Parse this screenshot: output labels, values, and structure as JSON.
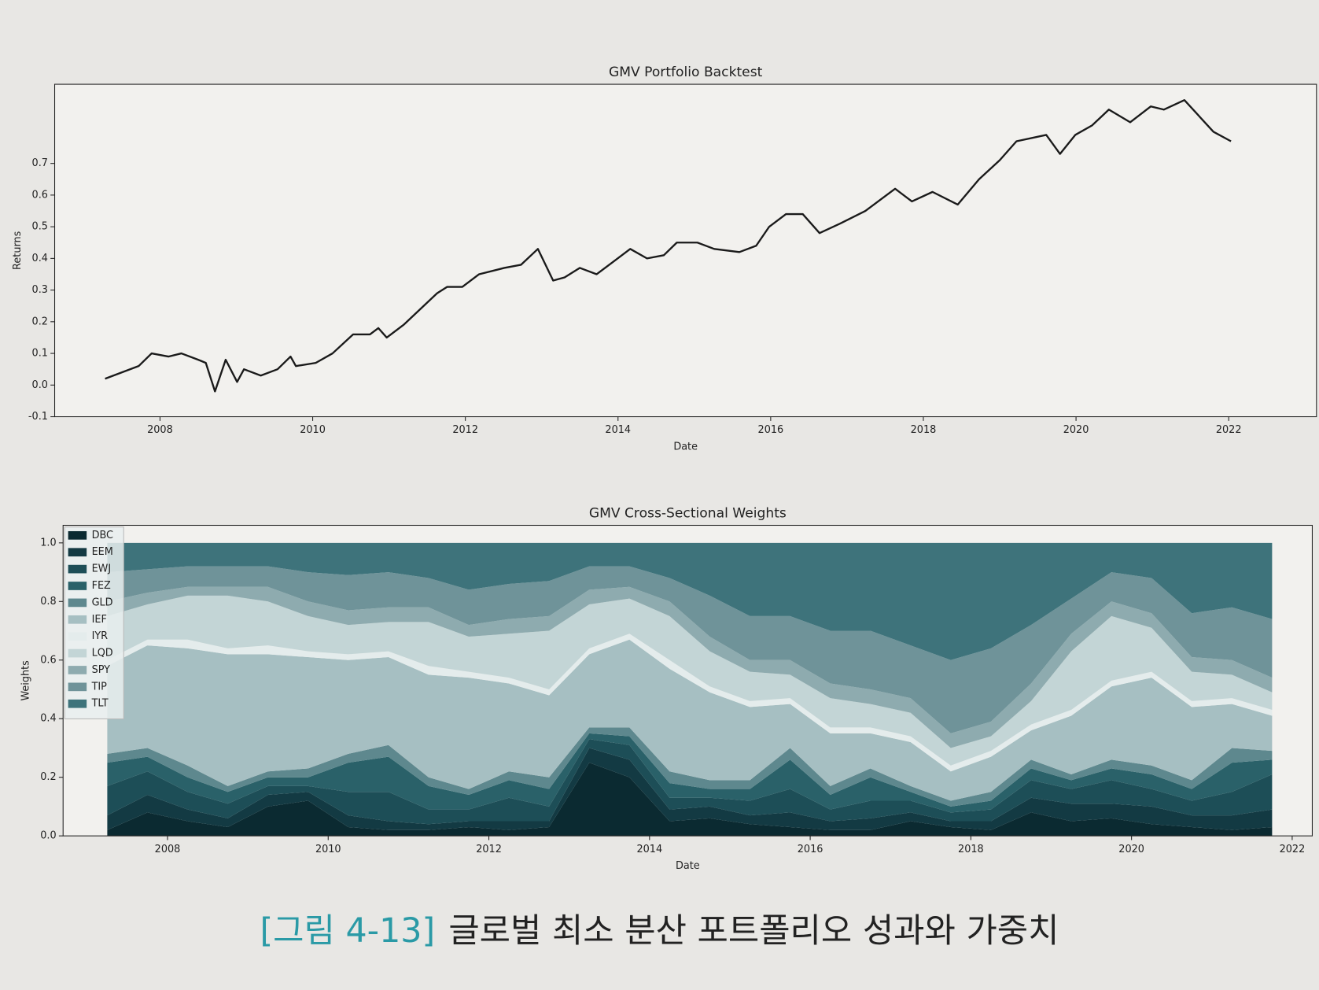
{
  "chart_data": [
    {
      "type": "line",
      "title": "GMV Portfolio Backtest",
      "xlabel": "Date",
      "ylabel": "Returns",
      "x": [
        2007.28,
        2007.72,
        2007.89,
        2008.11,
        2008.28,
        2008.5,
        2008.6,
        2008.72,
        2008.86,
        2009.01,
        2009.1,
        2009.32,
        2009.54,
        2009.71,
        2009.78,
        2010.04,
        2010.26,
        2010.53,
        2010.75,
        2010.86,
        2010.97,
        2011.19,
        2011.41,
        2011.63,
        2011.76,
        2011.96,
        2012.18,
        2012.51,
        2012.73,
        2012.95,
        2013.15,
        2013.3,
        2013.5,
        2013.72,
        2013.94,
        2014.16,
        2014.38,
        2014.6,
        2014.77,
        2015.04,
        2015.26,
        2015.59,
        2015.81,
        2015.98,
        2016.2,
        2016.42,
        2016.64,
        2016.91,
        2017.24,
        2017.63,
        2017.85,
        2018.12,
        2018.45,
        2018.73,
        2019.0,
        2019.22,
        2019.61,
        2019.79,
        2019.99,
        2020.21,
        2020.43,
        2020.71,
        2020.98,
        2021.15,
        2021.42,
        2021.8,
        2022.03
      ],
      "series": [
        {
          "name": "Returns",
          "color": "#1a1a1a",
          "values": [
            0.02,
            0.06,
            0.1,
            0.09,
            0.1,
            0.08,
            0.07,
            -0.02,
            0.08,
            0.01,
            0.05,
            0.03,
            0.05,
            0.09,
            0.06,
            0.07,
            0.1,
            0.16,
            0.16,
            0.18,
            0.15,
            0.19,
            0.24,
            0.29,
            0.31,
            0.31,
            0.35,
            0.37,
            0.38,
            0.43,
            0.33,
            0.34,
            0.37,
            0.35,
            0.39,
            0.43,
            0.4,
            0.41,
            0.45,
            0.45,
            0.43,
            0.42,
            0.44,
            0.5,
            0.54,
            0.54,
            0.48,
            0.51,
            0.55,
            0.62,
            0.58,
            0.61,
            0.57,
            0.65,
            0.71,
            0.77,
            0.79,
            0.73,
            0.79,
            0.82,
            0.87,
            0.83,
            0.88,
            0.87,
            0.9,
            0.8,
            0.77
          ]
        }
      ],
      "xlim": [
        2006.62,
        2023.15
      ],
      "xticks": [
        2008,
        2010,
        2012,
        2014,
        2016,
        2018,
        2020,
        2022
      ],
      "ylim": [
        -0.1,
        0.95
      ],
      "yticks": [
        -0.1,
        {
          "value": 0,
          "label": "0.0"
        },
        0.1,
        0.2,
        0.3,
        0.4,
        0.5,
        0.6,
        0.7
      ]
    },
    {
      "type": "stacked_area",
      "title": "GMV Cross-Sectional Weights",
      "xlabel": "Date",
      "ylabel": "Weights",
      "legend": "upper left",
      "x": [
        2007.25,
        2007.75,
        2008.25,
        2008.75,
        2009.25,
        2009.75,
        2010.25,
        2010.75,
        2011.25,
        2011.75,
        2012.25,
        2012.75,
        2013.25,
        2013.75,
        2014.25,
        2014.75,
        2015.25,
        2015.75,
        2016.25,
        2016.75,
        2017.25,
        2017.75,
        2018.25,
        2018.75,
        2019.25,
        2019.75,
        2020.25,
        2020.75,
        2021.25,
        2021.75
      ],
      "series": [
        {
          "name": "DBC",
          "color": "#0b2a31",
          "values": [
            0.02,
            0.08,
            0.05,
            0.03,
            0.1,
            0.12,
            0.03,
            0.02,
            0.02,
            0.03,
            0.02,
            0.03,
            0.25,
            0.2,
            0.05,
            0.06,
            0.04,
            0.03,
            0.02,
            0.02,
            0.05,
            0.03,
            0.02,
            0.08,
            0.05,
            0.06,
            0.04,
            0.03,
            0.02,
            0.03
          ]
        },
        {
          "name": "EEM",
          "color": "#133a43",
          "values": [
            0.05,
            0.06,
            0.04,
            0.03,
            0.04,
            0.03,
            0.04,
            0.03,
            0.02,
            0.02,
            0.03,
            0.02,
            0.05,
            0.06,
            0.04,
            0.04,
            0.03,
            0.05,
            0.03,
            0.04,
            0.03,
            0.02,
            0.03,
            0.05,
            0.06,
            0.05,
            0.06,
            0.04,
            0.05,
            0.06
          ]
        },
        {
          "name": "EWJ",
          "color": "#1d4e57",
          "values": [
            0.1,
            0.08,
            0.06,
            0.05,
            0.03,
            0.02,
            0.08,
            0.1,
            0.05,
            0.04,
            0.08,
            0.05,
            0.03,
            0.05,
            0.04,
            0.03,
            0.05,
            0.08,
            0.04,
            0.06,
            0.04,
            0.03,
            0.04,
            0.06,
            0.05,
            0.08,
            0.06,
            0.05,
            0.08,
            0.12
          ]
        },
        {
          "name": "FEZ",
          "color": "#2a6169",
          "values": [
            0.08,
            0.05,
            0.05,
            0.04,
            0.03,
            0.03,
            0.1,
            0.12,
            0.08,
            0.05,
            0.06,
            0.06,
            0.02,
            0.03,
            0.05,
            0.03,
            0.04,
            0.1,
            0.05,
            0.08,
            0.03,
            0.02,
            0.03,
            0.04,
            0.03,
            0.04,
            0.05,
            0.04,
            0.1,
            0.05
          ]
        },
        {
          "name": "GLD",
          "color": "#5e888e",
          "values": [
            0.03,
            0.03,
            0.04,
            0.02,
            0.02,
            0.03,
            0.03,
            0.04,
            0.03,
            0.02,
            0.03,
            0.04,
            0.02,
            0.03,
            0.04,
            0.03,
            0.03,
            0.04,
            0.03,
            0.03,
            0.02,
            0.02,
            0.03,
            0.03,
            0.02,
            0.03,
            0.03,
            0.03,
            0.05,
            0.03
          ]
        },
        {
          "name": "IEF",
          "color": "#a6bfc2",
          "values": [
            0.3,
            0.35,
            0.4,
            0.45,
            0.4,
            0.38,
            0.32,
            0.3,
            0.35,
            0.38,
            0.3,
            0.28,
            0.25,
            0.3,
            0.35,
            0.3,
            0.25,
            0.15,
            0.18,
            0.12,
            0.15,
            0.1,
            0.12,
            0.1,
            0.2,
            0.25,
            0.3,
            0.25,
            0.15,
            0.12
          ]
        },
        {
          "name": "IYR",
          "color": "#e4ecec",
          "values": [
            0.02,
            0.02,
            0.03,
            0.02,
            0.03,
            0.02,
            0.02,
            0.02,
            0.03,
            0.02,
            0.02,
            0.02,
            0.02,
            0.02,
            0.03,
            0.02,
            0.02,
            0.02,
            0.02,
            0.02,
            0.02,
            0.02,
            0.02,
            0.02,
            0.02,
            0.02,
            0.02,
            0.02,
            0.02,
            0.02
          ]
        },
        {
          "name": "LQD",
          "color": "#c3d5d6",
          "values": [
            0.15,
            0.12,
            0.15,
            0.18,
            0.15,
            0.12,
            0.1,
            0.1,
            0.15,
            0.12,
            0.15,
            0.2,
            0.15,
            0.12,
            0.15,
            0.12,
            0.1,
            0.08,
            0.1,
            0.08,
            0.08,
            0.06,
            0.05,
            0.08,
            0.2,
            0.22,
            0.15,
            0.1,
            0.08,
            0.06
          ]
        },
        {
          "name": "SPY",
          "color": "#8eabaf",
          "values": [
            0.05,
            0.04,
            0.03,
            0.03,
            0.05,
            0.05,
            0.05,
            0.05,
            0.05,
            0.04,
            0.05,
            0.05,
            0.05,
            0.04,
            0.05,
            0.05,
            0.04,
            0.05,
            0.05,
            0.05,
            0.05,
            0.05,
            0.05,
            0.06,
            0.06,
            0.05,
            0.05,
            0.05,
            0.05,
            0.05
          ]
        },
        {
          "name": "TIP",
          "color": "#6f9399",
          "values": [
            0.1,
            0.08,
            0.07,
            0.07,
            0.07,
            0.1,
            0.12,
            0.12,
            0.1,
            0.12,
            0.12,
            0.12,
            0.08,
            0.07,
            0.08,
            0.14,
            0.15,
            0.15,
            0.18,
            0.2,
            0.18,
            0.25,
            0.25,
            0.2,
            0.12,
            0.1,
            0.12,
            0.15,
            0.18,
            0.2
          ]
        },
        {
          "name": "TLT",
          "color": "#3e737b",
          "values": [
            0.1,
            0.09,
            0.08,
            0.08,
            0.08,
            0.1,
            0.11,
            0.1,
            0.12,
            0.16,
            0.14,
            0.13,
            0.08,
            0.08,
            0.12,
            0.18,
            0.25,
            0.25,
            0.3,
            0.3,
            0.35,
            0.4,
            0.36,
            0.28,
            0.19,
            0.1,
            0.12,
            0.24,
            0.22,
            0.26
          ]
        }
      ],
      "xlim": [
        2006.7,
        2022.25
      ],
      "xticks": [
        2008,
        2010,
        2012,
        2014,
        2016,
        2018,
        2020,
        2022
      ],
      "ylim": [
        0,
        1.06
      ],
      "yticks": [
        {
          "value": 0,
          "label": "0.0"
        },
        0.2,
        0.4,
        0.6,
        0.8,
        {
          "value": 1,
          "label": "1.0"
        }
      ]
    }
  ],
  "caption": {
    "label": "[그림 4-13]",
    "text": "글로벌 최소 분산 포트폴리오 성과와 가중치"
  }
}
